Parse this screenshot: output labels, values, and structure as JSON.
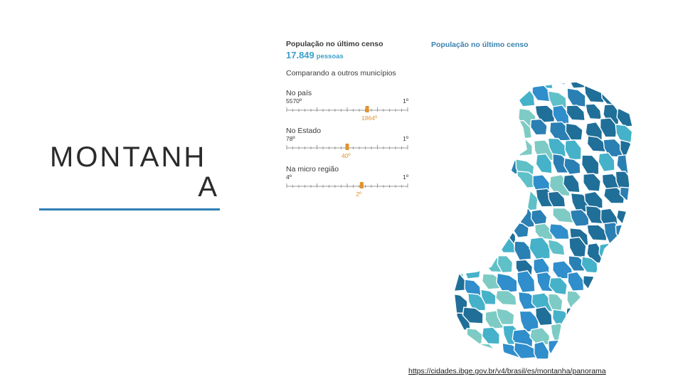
{
  "title": {
    "line1": "MONTANH",
    "line2": "A"
  },
  "panel": {
    "header": "População no último censo",
    "population_value": "17.849",
    "population_unit": "pessoas",
    "comparing_label": "Comparando a outros municípios",
    "gauges": [
      {
        "name": "No país",
        "low": "5570º",
        "high": "1º",
        "position_label": "1864º",
        "position": 0.665
      },
      {
        "name": "No Estado",
        "low": "78º",
        "high": "1º",
        "position_label": "40º",
        "position": 0.5
      },
      {
        "name": "Na micro região",
        "low": "4º",
        "high": "1º",
        "position_label": "2º",
        "position": 0.62
      }
    ]
  },
  "map": {
    "header": "População no último censo",
    "colors": [
      "#7dcbc4",
      "#45b2c9",
      "#2f8ecb",
      "#1f6f99",
      "#2a7fb3",
      "#5fc0c8"
    ]
  },
  "source_link": "https://cidades.ibge.gov.br/v4/brasil/es/montanha/panorama",
  "colors": {
    "accent": "#2f7fb6",
    "marker": "#e0932e",
    "value": "#3b9fc9"
  }
}
